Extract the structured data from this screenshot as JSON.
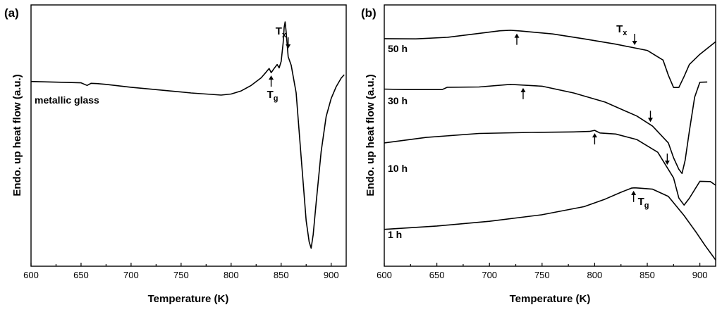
{
  "chart_data": [
    {
      "type": "line",
      "panel_label": "(a)",
      "xlabel": "Temperature (K)",
      "ylabel": "Endo. up heat flow (a.u.)",
      "xlim": [
        600,
        915
      ],
      "ylim": [
        0,
        100
      ],
      "xticks": [
        "600",
        "650",
        "700",
        "750",
        "800",
        "850",
        "900"
      ],
      "xtick_values": [
        600,
        650,
        700,
        750,
        800,
        850,
        900
      ],
      "series": [
        {
          "name": "metallic glass",
          "label": "metallic glass",
          "x": [
            600,
            620,
            650,
            656,
            660,
            666,
            675,
            700,
            730,
            760,
            790,
            800,
            810,
            820,
            830,
            835,
            838,
            840,
            843,
            846,
            848,
            850,
            852,
            853,
            854,
            855,
            857,
            860,
            865,
            870,
            875,
            878,
            880,
            882,
            885,
            890,
            895,
            900,
            905,
            910,
            913
          ],
          "y": [
            70.7,
            70.5,
            70.2,
            69.2,
            70.0,
            69.9,
            69.6,
            68.5,
            67.4,
            66.3,
            65.5,
            65.9,
            67.1,
            69.2,
            72.1,
            74.3,
            75.7,
            74.1,
            75.7,
            77.2,
            75.9,
            78.4,
            85.5,
            91.4,
            93.5,
            89.5,
            80.2,
            76.9,
            66.4,
            41.8,
            17.5,
            9.3,
            6.9,
            12.1,
            24.3,
            43.9,
            57.3,
            64.2,
            68.7,
            72.0,
            73.3
          ]
        }
      ],
      "annotations": [
        {
          "text": "Tx",
          "base": "T",
          "sub": "x",
          "x": 857,
          "y": 90,
          "direction": "down"
        },
        {
          "text": "Tg",
          "base": "T",
          "sub": "g",
          "x": 840,
          "y": 71,
          "direction": "up"
        }
      ]
    },
    {
      "type": "line",
      "panel_label": "(b)",
      "xlabel": "Temperature (K)",
      "ylabel": "Endo. up heat flow (a.u.)",
      "xlim": [
        600,
        915
      ],
      "ylim": [
        0,
        100
      ],
      "xticks": [
        "600",
        "650",
        "700",
        "750",
        "800",
        "850",
        "900"
      ],
      "xtick_values": [
        600,
        650,
        700,
        750,
        800,
        850,
        900
      ],
      "series": [
        {
          "name": "50 h",
          "label": "50 h",
          "x": [
            600,
            630,
            660,
            690,
            710,
            720,
            730,
            760,
            790,
            820,
            850,
            865,
            870,
            875,
            880,
            885,
            890,
            900,
            915
          ],
          "y": [
            87.1,
            87.0,
            87.6,
            89.1,
            90.1,
            90.3,
            90.0,
            88.9,
            87.0,
            85.0,
            82.6,
            78.9,
            73.1,
            68.4,
            68.4,
            72.6,
            77.2,
            81.1,
            85.9
          ],
          "arrows": [
            {
              "x": 726,
              "direction": "up"
            },
            {
              "x": 838,
              "direction": "down",
              "label": "Tx",
              "base": "T",
              "sub": "x"
            }
          ]
        },
        {
          "name": "30 h",
          "label": "30 h",
          "x": [
            600,
            620,
            655,
            660,
            690,
            720,
            750,
            780,
            810,
            840,
            855,
            870,
            875,
            880,
            883,
            886,
            890,
            895,
            900,
            907
          ],
          "y": [
            67.8,
            67.6,
            67.6,
            68.5,
            68.6,
            69.6,
            68.9,
            66.3,
            62.8,
            57.5,
            53.6,
            47.2,
            41.5,
            37.1,
            35.5,
            40.5,
            51.7,
            64.7,
            70.4,
            70.5
          ],
          "arrows": [
            {
              "x": 732,
              "direction": "up"
            },
            {
              "x": 853,
              "direction": "down"
            }
          ]
        },
        {
          "name": "10 h",
          "label": "10 h",
          "x": [
            600,
            640,
            690,
            740,
            780,
            795,
            800,
            805,
            820,
            840,
            860,
            875,
            880,
            885,
            890,
            900,
            910,
            915
          ],
          "y": [
            47.2,
            49.3,
            50.8,
            51.2,
            51.4,
            51.6,
            52.0,
            51.0,
            50.6,
            48.5,
            43.6,
            33.8,
            26.1,
            23.4,
            26.0,
            32.5,
            32.4,
            31.0
          ],
          "arrows": [
            {
              "x": 800,
              "direction": "up"
            },
            {
              "x": 869,
              "direction": "down"
            }
          ]
        },
        {
          "name": "1 h",
          "label": "1 h",
          "x": [
            600,
            650,
            700,
            750,
            790,
            810,
            825,
            835,
            838,
            842,
            855,
            870,
            885,
            893,
            897,
            905,
            915
          ],
          "y": [
            14.1,
            15.4,
            17.2,
            19.7,
            22.8,
            25.7,
            28.3,
            29.9,
            30.0,
            29.9,
            29.5,
            26.7,
            19.4,
            14.9,
            12.7,
            7.9,
            2.4
          ],
          "arrows": [
            {
              "x": 837,
              "direction": "up",
              "label": "Tg",
              "base": "T",
              "sub": "g"
            }
          ]
        }
      ]
    }
  ]
}
